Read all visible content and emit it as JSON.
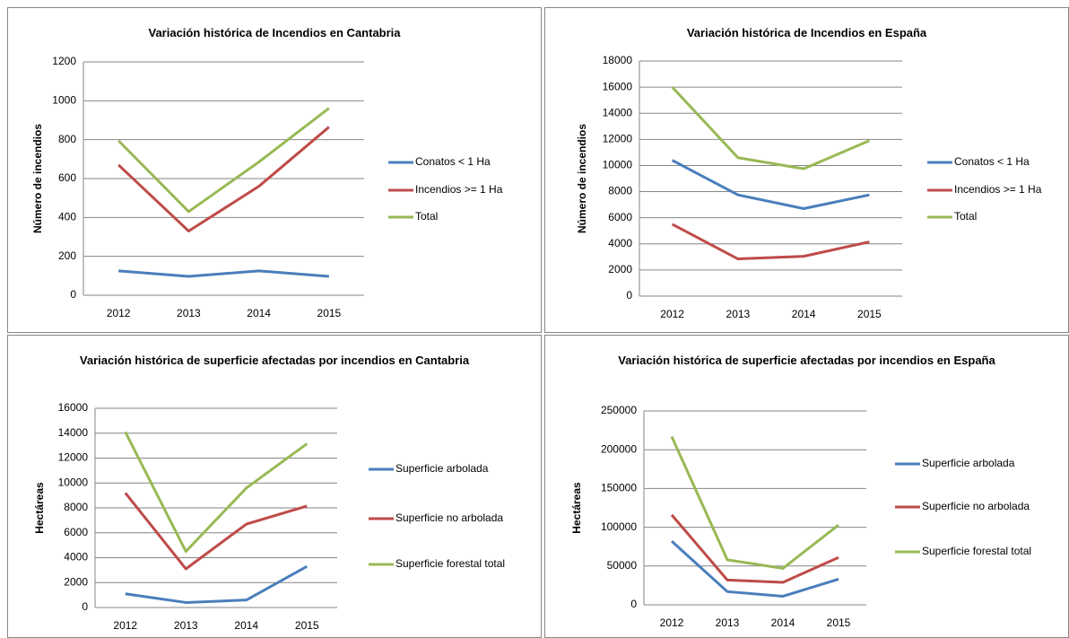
{
  "chart_data": [
    {
      "type": "line",
      "title": "Variación histórica de Incendios  en Cantabria",
      "ylabel": "Número de incendios",
      "categories": [
        "2012",
        "2013",
        "2014",
        "2015"
      ],
      "ylim": [
        0,
        1200
      ],
      "yticks": [
        0,
        200,
        400,
        600,
        800,
        1000,
        1200
      ],
      "grid": true,
      "series": [
        {
          "name": "Conatos < 1 Ha",
          "color": "#4a7ebb",
          "values": [
            125,
            97,
            125,
            97
          ]
        },
        {
          "name": "Incendios >= 1 Ha",
          "color": "#be4b48",
          "values": [
            670,
            330,
            560,
            865
          ]
        },
        {
          "name": "Total",
          "color": "#98b954",
          "values": [
            795,
            430,
            685,
            962
          ]
        }
      ]
    },
    {
      "type": "line",
      "title": "Variación histórica de Incendios en España",
      "ylabel": "Número de incendios",
      "categories": [
        "2012",
        "2013",
        "2014",
        "2015"
      ],
      "ylim": [
        0,
        18000
      ],
      "yticks": [
        0,
        2000,
        4000,
        6000,
        8000,
        10000,
        12000,
        14000,
        16000,
        18000
      ],
      "grid": true,
      "series": [
        {
          "name": "Conatos < 1 Ha",
          "color": "#4a7ebb",
          "values": [
            10400,
            7750,
            6700,
            7750
          ]
        },
        {
          "name": "Incendios >= 1 Ha",
          "color": "#be4b48",
          "values": [
            5500,
            2850,
            3050,
            4150
          ]
        },
        {
          "name": "Total",
          "color": "#98b954",
          "values": [
            16000,
            10600,
            9750,
            11900
          ]
        }
      ]
    },
    {
      "type": "line",
      "title": "Variación histórica de superficie afectadas por incendios en Cantabria",
      "ylabel": "Hectáreas",
      "categories": [
        "2012",
        "2013",
        "2014",
        "2015"
      ],
      "ylim": [
        0,
        16000
      ],
      "yticks": [
        0,
        2000,
        4000,
        6000,
        8000,
        10000,
        12000,
        14000,
        16000
      ],
      "grid": true,
      "series": [
        {
          "name": "Superficie arbolada",
          "color": "#4a7ebb",
          "values": [
            1100,
            400,
            600,
            3300
          ]
        },
        {
          "name": "Superficie no arbolada",
          "color": "#be4b48",
          "values": [
            9200,
            3100,
            6700,
            8150
          ]
        },
        {
          "name": "Superficie forestal total",
          "color": "#98b954",
          "values": [
            14100,
            4500,
            9600,
            13150
          ]
        }
      ]
    },
    {
      "type": "line",
      "title": "Variación histórica de superficie afectadas por incendios en España",
      "ylabel": "Hectáreas",
      "categories": [
        "2012",
        "2013",
        "2014",
        "2015"
      ],
      "ylim": [
        0,
        250000
      ],
      "yticks": [
        0,
        50000,
        100000,
        150000,
        200000,
        250000
      ],
      "grid": true,
      "series": [
        {
          "name": "Superficie arbolada",
          "color": "#4a7ebb",
          "values": [
            82000,
            17000,
            11000,
            33000
          ]
        },
        {
          "name": "Superficie no arbolada",
          "color": "#be4b48",
          "values": [
            116000,
            32000,
            29000,
            61000
          ]
        },
        {
          "name": "Superficie forestal total",
          "color": "#98b954",
          "values": [
            217000,
            58000,
            47000,
            103000
          ]
        }
      ]
    }
  ]
}
